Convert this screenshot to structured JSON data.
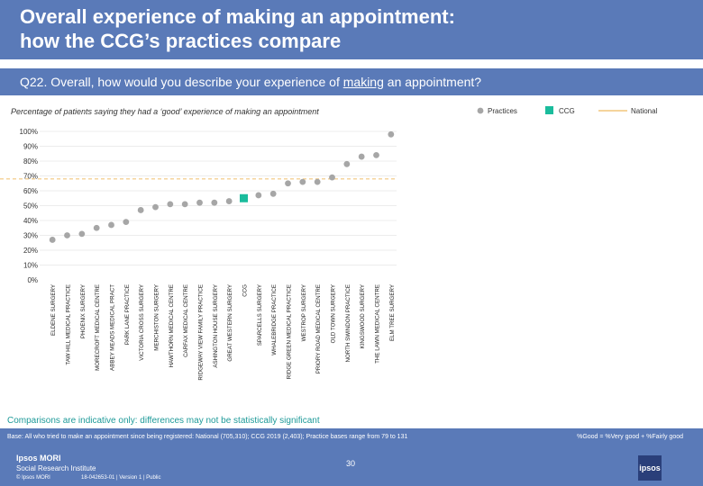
{
  "header": {
    "title_line1": "Overall experience of making an appointment:",
    "title_line2": "how the CCG’s practices compare"
  },
  "question": {
    "prefix": "Q22. Overall, how would you describe your experience of ",
    "underlined": "making",
    "suffix": " an appointment?"
  },
  "legend": {
    "practices": "Practices",
    "ccg": "CCG",
    "national": "National"
  },
  "colors": {
    "band": "#5a7ab8",
    "practice": "#a6a6a6",
    "ccg": "#1abc9c",
    "national": "#f2c57c",
    "gridline": "#d9d9d9"
  },
  "chart_data": {
    "type": "scatter",
    "title": "Percentage of patients saying they had a ‘good’ experience of making an appointment",
    "ylim": [
      0,
      100
    ],
    "yticks": [
      "0%",
      "10%",
      "20%",
      "30%",
      "40%",
      "50%",
      "60%",
      "70%",
      "80%",
      "90%",
      "100%"
    ],
    "grid": true,
    "categories": [
      "ELDENE SURGERY",
      "TAW HILL MEDICAL PRACTICE",
      "PHOENIX SURGERY",
      "MORECROFT MEDICAL CENTRE",
      "ABBEY MEADS MEDICAL PRACT",
      "PARK LANE PRACTICE",
      "VICTORIA CROSS SURGERY",
      "MERCHISTON SURGERY",
      "HAWTHORN MEDICAL CENTRE",
      "CARFAX MEDICAL CENTRE",
      "RIDGEWAY VIEW FAMILY PRACTICE",
      "ASHINGTON HOUSE SURGERY",
      "GREAT WESTERN SURGERY",
      "CCG",
      "SPARCELLS SURGERY",
      "WHALEBRIDGE PRACTICE",
      "RIDGE GREEN MEDICAL PRACTICE",
      "WESTROP SURGERY",
      "PRIORY ROAD MEDICAL CENTRE",
      "OLD TOWN SURGERY",
      "NORTH SWINDON PRACTICE",
      "KINGSWOOD SURGERY",
      "THE LAWN MEDICAL CENTRE",
      "ELM TREE SURGERY"
    ],
    "series": [
      {
        "name": "Practices",
        "values": [
          27,
          30,
          31,
          35,
          37,
          39,
          47,
          49,
          51,
          51,
          52,
          52,
          53,
          null,
          57,
          58,
          65,
          66,
          66,
          69,
          78,
          83,
          84,
          98
        ]
      },
      {
        "name": "CCG",
        "values": [
          null,
          null,
          null,
          null,
          null,
          null,
          null,
          null,
          null,
          null,
          null,
          null,
          null,
          55,
          null,
          null,
          null,
          null,
          null,
          null,
          null,
          null,
          null,
          null
        ]
      },
      {
        "name": "National",
        "constant": 68
      }
    ]
  },
  "note": "Comparisons are indicative only: differences may not be statistically significant",
  "footer": {
    "base": "Base: All who tried to make an appointment since being registered: National (705,310); CCG 2019 (2,403); Practice bases range from 79 to 131",
    "definition": "%Good = %Very good + %Fairly good",
    "page": "30",
    "logo_line1": "Ipsos MORI",
    "logo_line2": "Social Research Institute",
    "copyright": "© Ipsos MORI",
    "reference": "18-042653-01 | Version 1 | Public",
    "badge": "ipsos"
  }
}
